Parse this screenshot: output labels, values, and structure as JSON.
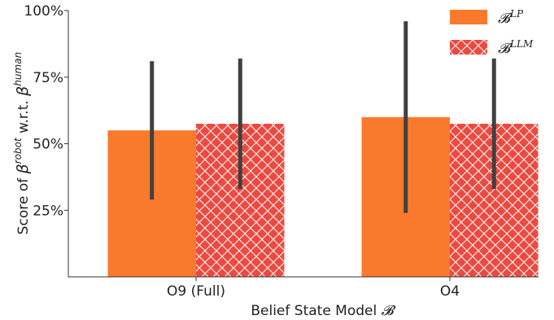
{
  "chart_data": {
    "type": "bar",
    "categories": [
      "O9 (Full)",
      "O4"
    ],
    "series": [
      {
        "name": "𝓑",
        "name_sup": "LP",
        "values": [
          55,
          60
        ],
        "error_low": [
          29,
          24
        ],
        "error_high": [
          81,
          96
        ],
        "color": "#f97a2c",
        "pattern": "solid"
      },
      {
        "name": "𝓑",
        "name_sup": "LLM",
        "values": [
          57.5,
          57.5
        ],
        "error_low": [
          33,
          33
        ],
        "error_high": [
          82,
          82
        ],
        "color": "#ec4a40",
        "pattern": "crosshatch"
      }
    ],
    "ylim": [
      0,
      100
    ],
    "yticks": [
      "25%",
      "50%",
      "75%",
      "100%"
    ],
    "ytick_values": [
      25,
      50,
      75,
      100
    ],
    "ylabel": {
      "prefix": "Score of ",
      "beta": "β",
      "sup1": "robot",
      "middle": " w.r.t. ",
      "sup2": "human"
    },
    "xlabel": {
      "text": "Belief State Model ",
      "symbol": "𝓑"
    },
    "legend_position": "top-right",
    "grid": false,
    "errorbar_color": "#404040"
  }
}
